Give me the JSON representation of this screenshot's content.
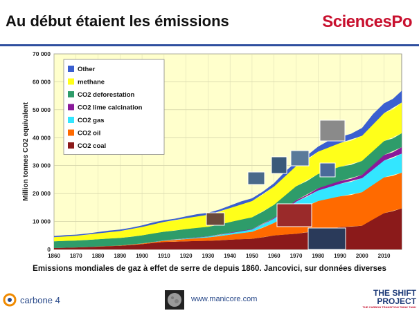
{
  "header": {
    "title": "Au début étaient les émissions",
    "brand": "SciencesPo"
  },
  "caption": "Emissions mondiales de gaz à effet de serre de depuis 1860. Jancovici, sur données diverses",
  "footer": {
    "left_logo_label": "carbone 4",
    "url": "www.manicore.com",
    "right_logo_line1": "THE SHIFT",
    "right_logo_line2": "PROJECT",
    "right_logo_tagline": "THE CARBON TRANSITION THINK TANK"
  },
  "colors": {
    "plot_bg": "#ffffcc",
    "coal": "#8b1a1a",
    "oil": "#ff6a00",
    "gas": "#33e6ff",
    "lime": "#8a1a9a",
    "deforestation": "#2e9c6a",
    "methane": "#ffff1a",
    "other": "#3a5fd0"
  },
  "chart_data": {
    "type": "area",
    "stacked": true,
    "ylabel": "Million tonnes CO2 equivalent",
    "xlabel": "",
    "ylim": [
      0,
      70000
    ],
    "xlim": [
      1860,
      2018
    ],
    "grid": true,
    "legend_position": "top-left",
    "yticks": [
      "0",
      "10 000",
      "20 000",
      "30 000",
      "40 000",
      "50 000",
      "60 000",
      "70 000"
    ],
    "xticks": [
      "1860",
      "1870",
      "1880",
      "1890",
      "1900",
      "1910",
      "1920",
      "1930",
      "1940",
      "1950",
      "1960",
      "1970",
      "1980",
      "1990",
      "2000",
      "2010"
    ],
    "x": [
      1860,
      1870,
      1880,
      1890,
      1900,
      1910,
      1920,
      1930,
      1940,
      1950,
      1960,
      1970,
      1980,
      1990,
      2000,
      2010,
      2018
    ],
    "series": [
      {
        "name": "CO2 coal",
        "key": "coal",
        "values": [
          500,
          700,
          1000,
          1300,
          1900,
          2700,
          2900,
          3100,
          3500,
          3800,
          5000,
          5600,
          6800,
          8000,
          8500,
          13000,
          14700
        ]
      },
      {
        "name": "CO2 oil",
        "key": "oil",
        "values": [
          0,
          0,
          50,
          100,
          200,
          400,
          800,
          1200,
          1800,
          2500,
          4500,
          8500,
          10500,
          11000,
          12000,
          12800,
          12800
        ]
      },
      {
        "name": "CO2 gas",
        "key": "gas",
        "values": [
          0,
          0,
          0,
          0,
          50,
          100,
          200,
          300,
          500,
          800,
          1500,
          3000,
          3800,
          4500,
          5000,
          6000,
          6800
        ]
      },
      {
        "name": "CO2 lime calcination",
        "key": "lime",
        "values": [
          0,
          0,
          0,
          0,
          0,
          50,
          100,
          100,
          200,
          200,
          300,
          500,
          800,
          1000,
          1200,
          2000,
          2300
        ]
      },
      {
        "name": "CO2 deforestation",
        "key": "deforestation",
        "values": [
          2400,
          2500,
          2600,
          2700,
          2900,
          3100,
          3300,
          3400,
          3800,
          4200,
          4700,
          5000,
          5100,
          5100,
          5000,
          5000,
          5000
        ]
      },
      {
        "name": "methane",
        "key": "methane",
        "values": [
          1500,
          1700,
          2100,
          2500,
          3000,
          3500,
          3900,
          4300,
          5000,
          5800,
          6500,
          7200,
          8000,
          8500,
          9000,
          10000,
          11000
        ]
      },
      {
        "name": "Other",
        "key": "other",
        "values": [
          400,
          400,
          450,
          500,
          550,
          600,
          650,
          700,
          900,
          1000,
          1200,
          1500,
          1800,
          2200,
          2800,
          3500,
          4200
        ]
      }
    ]
  }
}
